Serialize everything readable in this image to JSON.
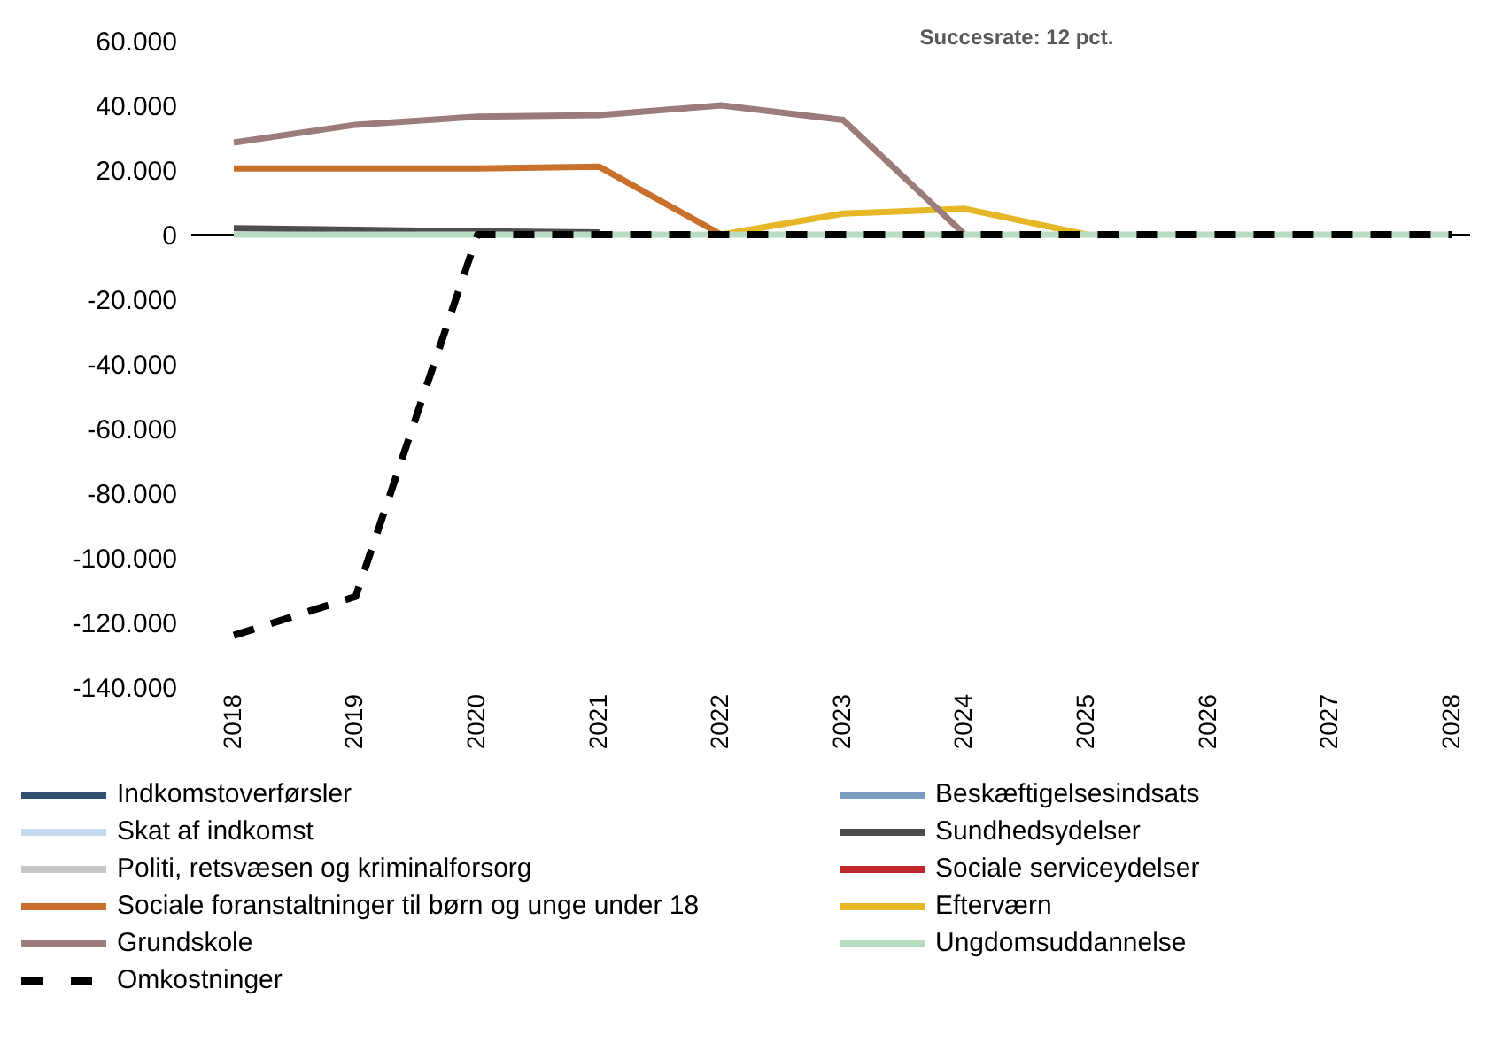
{
  "chart_data": {
    "type": "line",
    "title": "Succesrate: 12 pct.",
    "categories": [
      "2018",
      "2019",
      "2020",
      "2021",
      "2022",
      "2023",
      "2024",
      "2025",
      "2026",
      "2027",
      "2028"
    ],
    "ylim": [
      -140000,
      60000
    ],
    "yticks": [
      {
        "value": -140000,
        "label": "-140.000"
      },
      {
        "value": -120000,
        "label": "-120.000"
      },
      {
        "value": -100000,
        "label": "-100.000"
      },
      {
        "value": -80000,
        "label": "-80.000"
      },
      {
        "value": -60000,
        "label": "-60.000"
      },
      {
        "value": -40000,
        "label": "-40.000"
      },
      {
        "value": -20000,
        "label": "-20.000"
      },
      {
        "value": 0,
        "label": "0"
      },
      {
        "value": 20000,
        "label": "20.000"
      },
      {
        "value": 40000,
        "label": "40.000"
      },
      {
        "value": 60000,
        "label": "60.000"
      }
    ],
    "grid": false,
    "legend": "bottom",
    "marker": "none",
    "series": [
      {
        "name": "Indkomstoverførsler",
        "color": "#2f4f6f",
        "values": [
          null,
          null,
          null,
          null,
          null,
          null,
          null,
          null,
          null,
          null,
          null
        ]
      },
      {
        "name": "Beskæftigelsesindsats",
        "color": "#7a9cc0",
        "values": [
          null,
          null,
          null,
          null,
          null,
          null,
          null,
          null,
          null,
          null,
          null
        ]
      },
      {
        "name": "Skat af indkomst",
        "color": "#c5d9f1",
        "values": [
          null,
          null,
          null,
          null,
          null,
          null,
          null,
          null,
          null,
          null,
          null
        ]
      },
      {
        "name": "Sundhedsydelser",
        "color": "#4d4d4d",
        "values": [
          2000,
          1500,
          1000,
          700,
          null,
          null,
          null,
          null,
          null,
          null,
          null
        ]
      },
      {
        "name": "Politi, retsvæsen og kriminalforsorg",
        "color": "#c8c8c8",
        "values": [
          null,
          null,
          null,
          null,
          null,
          null,
          null,
          null,
          null,
          null,
          null
        ]
      },
      {
        "name": "Sociale serviceydelser",
        "color": "#c0282d",
        "values": [
          null,
          null,
          null,
          null,
          null,
          null,
          null,
          null,
          null,
          null,
          null
        ]
      },
      {
        "name": "Sociale foranstaltninger til børn og unge under 18",
        "color": "#c8702c",
        "values": [
          20500,
          20500,
          20500,
          21000,
          0,
          null,
          null,
          null,
          null,
          null,
          null
        ]
      },
      {
        "name": "Efterværn",
        "color": "#e6b828",
        "values": [
          null,
          null,
          null,
          null,
          0,
          6500,
          8000,
          0,
          null,
          null,
          null
        ]
      },
      {
        "name": "Grundskole",
        "color": "#9b7c7a",
        "values": [
          28500,
          34000,
          36500,
          37000,
          40000,
          35500,
          0,
          null,
          null,
          null,
          null
        ]
      },
      {
        "name": "Ungdomsuddannelse",
        "color": "#b8dcc0",
        "values": [
          0,
          0,
          0,
          0,
          0,
          0,
          0,
          0,
          0,
          0,
          0
        ]
      },
      {
        "name": "Omkostninger",
        "color": "#000000",
        "line_style": "dashed",
        "values": [
          -124000,
          -112000,
          0,
          0,
          0,
          0,
          0,
          0,
          0,
          0,
          0
        ]
      }
    ]
  }
}
